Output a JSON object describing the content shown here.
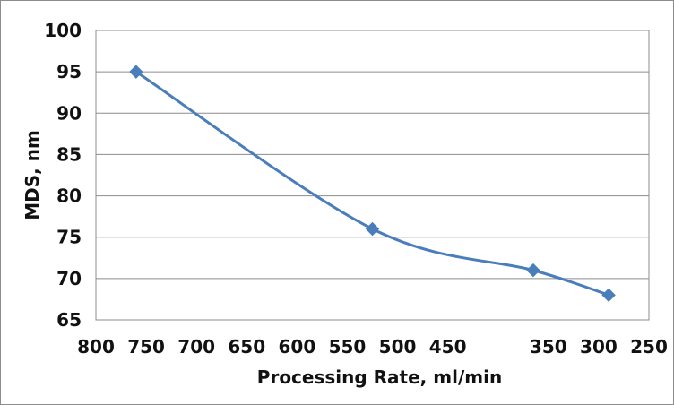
{
  "chart_data": {
    "type": "line",
    "title": "",
    "xlabel": "Processing Rate, ml/min",
    "ylabel": "MDS, nm",
    "xlim": [
      250,
      800
    ],
    "x_reversed": true,
    "ylim": [
      65,
      100
    ],
    "x_ticks": [
      800,
      750,
      700,
      650,
      600,
      550,
      500,
      450,
      400,
      350,
      300,
      250
    ],
    "x_tick_labels": [
      "800",
      "750",
      "700",
      "650",
      "600",
      "550",
      "500",
      "450",
      "",
      "350",
      "300",
      "250"
    ],
    "y_ticks": [
      65,
      70,
      75,
      80,
      85,
      90,
      95,
      100
    ],
    "y_tick_labels": [
      "65",
      "70",
      "75",
      "80",
      "85",
      "90",
      "95",
      "100"
    ],
    "grid": "horizontal",
    "legend": "none",
    "smooth": true,
    "marker": "diamond",
    "color": "#4a7ebb",
    "series": [
      {
        "x": [
          760,
          525,
          365,
          290
        ],
        "y": [
          95,
          76,
          71,
          68
        ]
      }
    ]
  }
}
